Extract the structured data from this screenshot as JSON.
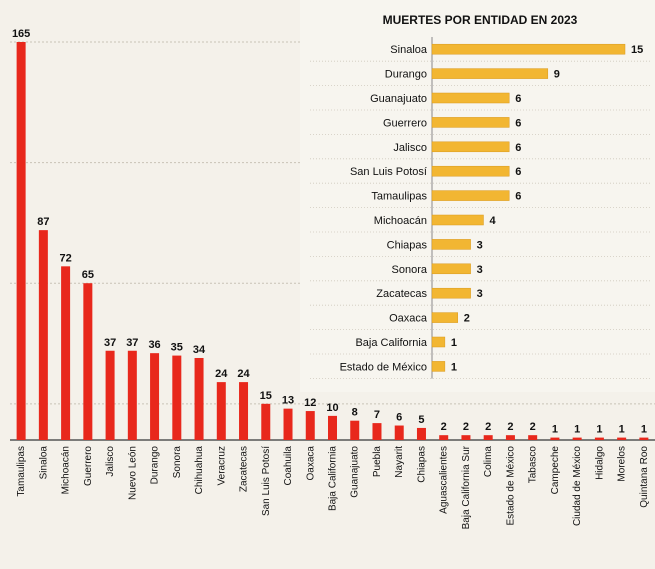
{
  "chart_data": [
    {
      "type": "bar",
      "orientation": "vertical",
      "title": "",
      "categories": [
        "Tamaulipas",
        "Sinaloa",
        "Michoacán",
        "Guerrero",
        "Jalisco",
        "Nuevo León",
        "Durango",
        "Sonora",
        "Chihuahua",
        "Veracruz",
        "Zacatecas",
        "San Luis Potosí",
        "Coahuila",
        "Oaxaca",
        "Baja California",
        "Guanajuato",
        "Puebla",
        "Nayarit",
        "Chiapas",
        "Aguascalientes",
        "Baja California Sur",
        "Colima",
        "Estado de México",
        "Tabasco",
        "Campeche",
        "Ciudad de México",
        "Hidalgo",
        "Morelos",
        "Quintana Roo"
      ],
      "values": [
        165,
        87,
        72,
        65,
        37,
        37,
        36,
        35,
        34,
        24,
        24,
        15,
        13,
        12,
        10,
        8,
        7,
        6,
        5,
        2,
        2,
        2,
        2,
        2,
        1,
        1,
        1,
        1,
        1
      ],
      "ylim": [
        0,
        170
      ],
      "colors": {
        "bar": "#e8281c",
        "grid": "#c8c2b6",
        "axis": "#555555"
      }
    },
    {
      "type": "bar",
      "orientation": "horizontal",
      "title": "MUERTES POR ENTIDAD EN 2023",
      "categories": [
        "Sinaloa",
        "Durango",
        "Guanajuato",
        "Guerrero",
        "Jalisco",
        "San Luis Potosí",
        "Tamaulipas",
        "Michoacán",
        "Chiapas",
        "Sonora",
        "Zacatecas",
        "Oaxaca",
        "Baja California",
        "Estado de México"
      ],
      "values": [
        15,
        9,
        6,
        6,
        6,
        6,
        6,
        4,
        3,
        3,
        3,
        2,
        1,
        1
      ],
      "xlim": [
        0,
        15
      ],
      "colors": {
        "bar": "#f2b632",
        "bar_edge": "#d99a1e"
      }
    }
  ]
}
